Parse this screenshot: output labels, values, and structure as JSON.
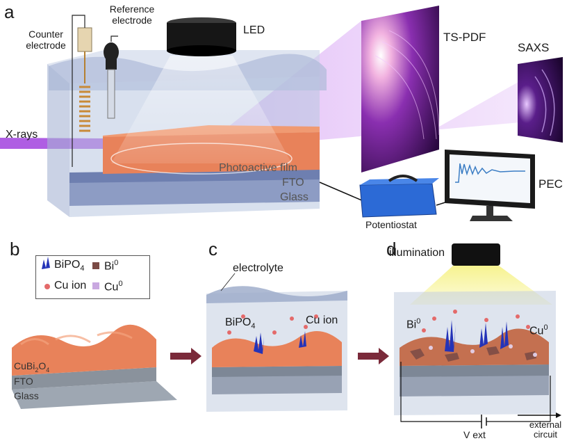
{
  "panels": {
    "a": "a",
    "b": "b",
    "c": "c",
    "d": "d"
  },
  "setup": {
    "counter_line1": "Counter",
    "counter_line2": "electrode",
    "reference_line1": "Reference",
    "reference_line2": "electrode",
    "led": "LED",
    "ts_pdf": "TS-PDF",
    "saxs": "SAXS",
    "xrays": "X-rays",
    "photoactive": "Photoactive film",
    "fto": "FTO",
    "glass": "Glass",
    "pec": "PEC",
    "potentiostat": "Potentiostat"
  },
  "legend": {
    "bipo4": "BiPO",
    "bipo4_sub": "4",
    "bi0": "Bi",
    "bi0_sup": "0",
    "cu_ion": "Cu ion",
    "cu0": "Cu",
    "cu0_sup": "0"
  },
  "panel_b": {
    "film": "CuBi",
    "film_sub1": "2",
    "film_o": "O",
    "film_sub2": "4",
    "fto": "FTO",
    "glass": "Glass"
  },
  "panel_c": {
    "electrolyte": "electrolyte",
    "bipo4": "BiPO",
    "bipo4_sub": "4",
    "cu_ion": "Cu ion"
  },
  "panel_d": {
    "illumination": "illumination",
    "bi0": "Bi",
    "bi0_sup": "0",
    "cu0": "Cu",
    "cu0_sup": "0",
    "vext": "V ext",
    "ext_line1": "external",
    "ext_line2": "circuit"
  },
  "colors": {
    "film": "#e8825a",
    "beam": "#a64de0",
    "bipo4": "#2433b8",
    "bi0": "#7a4a45",
    "cu_ion": "#e46a6a",
    "cu0": "#c9a8e0",
    "arrow": "#7a2a3a",
    "light": "#f4ef9a"
  }
}
